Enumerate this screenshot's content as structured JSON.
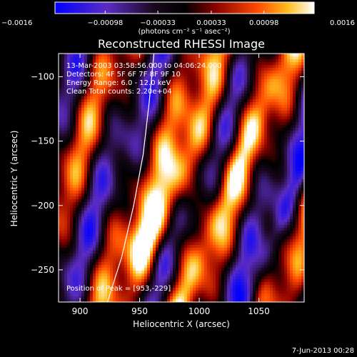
{
  "chart_data": {
    "type": "heatmap",
    "title": "Reconstructed RHESSI Image",
    "xlabel": "Heliocentric X (arcsec)",
    "ylabel": "Heliocentric Y (arcsec)",
    "xlim": [
      882,
      1088
    ],
    "ylim": [
      -275,
      -82
    ],
    "x_ticks": [
      900,
      950,
      1000,
      1050
    ],
    "y_ticks": [
      -250,
      -200,
      -150,
      -100
    ],
    "x_tick_labels": [
      "900",
      "950",
      "1000",
      "1050"
    ],
    "y_tick_labels": [
      "−250",
      "−200",
      "−150",
      "−100"
    ],
    "colorbar": {
      "range": [
        -0.0016,
        0.0016
      ],
      "ticks": [
        -0.0016,
        -0.00098,
        -0.00033,
        0.00033,
        0.00098,
        0.0016
      ],
      "tick_labels": [
        "−0.0016",
        "−0.00098",
        "−0.00033",
        "0.00033",
        "0.00098",
        "0.0016"
      ],
      "unit_label": "(photons cm⁻² s⁻¹ asec⁻²)",
      "colormap": "blue-purple-black-red-orange-yellow-white"
    },
    "annotations": {
      "time_range": "13-Mar-2003 03:58:56.000 to 04:06:24.000",
      "detectors": "Detectors: 4F 5F 6F 7F 8F 9F 10",
      "energy_range": "Energy Range: 6.0 - 12.0 keV",
      "clean_line": "Clean    Total counts: 2.20e+04",
      "peak": "Position of Peak = [953,-229]"
    },
    "peak": [
      953,
      -229
    ],
    "limb_curve": [
      [
        923,
        -275
      ],
      [
        935,
        -240
      ],
      [
        945,
        -200
      ],
      [
        953,
        -160
      ],
      [
        958,
        -120
      ],
      [
        962,
        -82
      ]
    ],
    "footer_date": "7-Jun-2013 00:28"
  }
}
